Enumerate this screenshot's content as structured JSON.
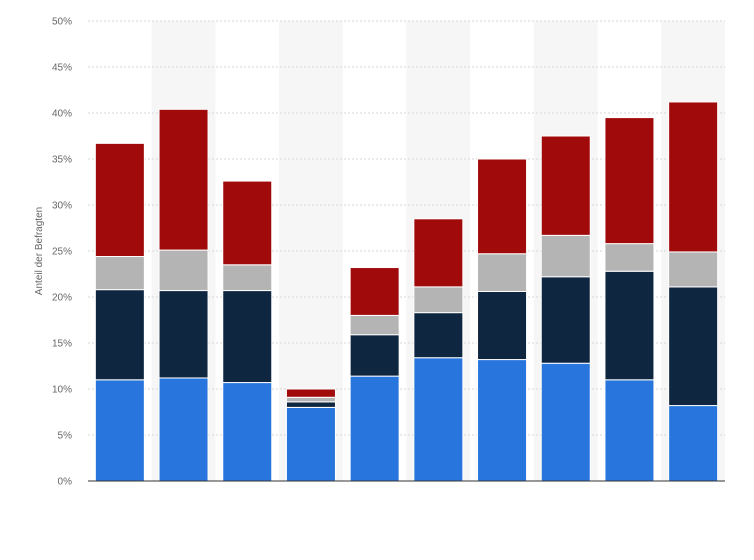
{
  "chart_data": {
    "type": "bar",
    "stacked": true,
    "title": "",
    "xlabel": "",
    "ylabel": "Anteil der Befragten",
    "ylim": [
      0,
      50
    ],
    "y_ticks": [
      0,
      5,
      10,
      15,
      20,
      25,
      30,
      35,
      40,
      45,
      50
    ],
    "y_tick_suffix": "%",
    "grid": true,
    "legend": "none",
    "categories": [
      "",
      "",
      "",
      "",
      "",
      "",
      "",
      "",
      "",
      ""
    ],
    "series": [
      {
        "color": "#2876dd",
        "values": [
          11.0,
          11.2,
          10.7,
          8.0,
          11.4,
          13.4,
          13.2,
          12.8,
          11.0,
          8.2
        ]
      },
      {
        "color": "#0f2640",
        "values": [
          9.8,
          9.5,
          10.0,
          0.6,
          4.5,
          4.9,
          7.4,
          9.4,
          11.8,
          12.9
        ]
      },
      {
        "color": "#b4b4b4",
        "values": [
          3.6,
          4.4,
          2.8,
          0.5,
          2.1,
          2.8,
          4.1,
          4.5,
          3.0,
          3.8
        ]
      },
      {
        "color": "#a10a0a",
        "values": [
          12.3,
          15.3,
          9.1,
          0.9,
          5.2,
          7.4,
          10.3,
          10.8,
          13.7,
          16.3
        ]
      }
    ]
  }
}
